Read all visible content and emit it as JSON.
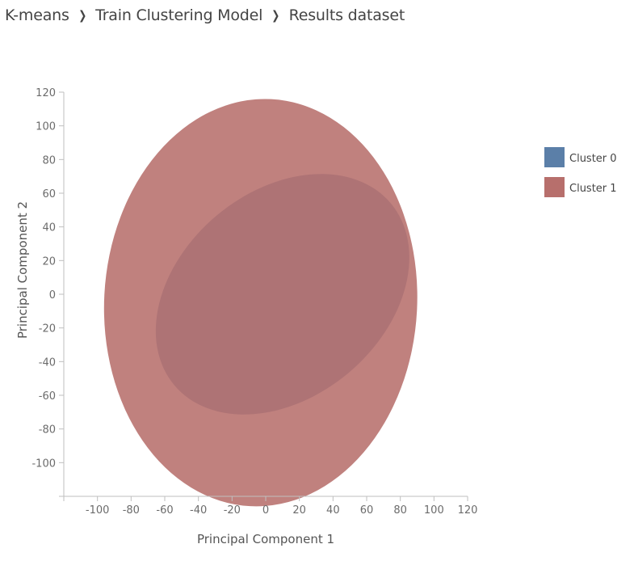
{
  "breadcrumb": {
    "items": [
      "K-means",
      "Train Clustering Model",
      "Results dataset"
    ]
  },
  "chart_data": {
    "type": "scatter",
    "xlabel": "Principal Component 1",
    "ylabel": "Principal Component 2",
    "xlim": [
      -120,
      120
    ],
    "ylim": [
      -120,
      120
    ],
    "xticks": [
      -100,
      -80,
      -60,
      -40,
      -20,
      0,
      20,
      40,
      60,
      80,
      100,
      120
    ],
    "yticks": [
      -100,
      -80,
      -60,
      -40,
      -20,
      0,
      20,
      40,
      60,
      80,
      100,
      120
    ],
    "grid": false,
    "legend_position": "right",
    "series": [
      {
        "name": "Cluster 0",
        "color": "#5b7fa8",
        "shape": "ellipse",
        "center": [
          10,
          0
        ],
        "semi_axes": [
          84,
          61
        ],
        "rotation_deg": -40
      },
      {
        "name": "Cluster 1",
        "color": "#b76f6c",
        "shape": "ellipse",
        "center": [
          -3,
          -5
        ],
        "semi_axes": [
          93,
          121
        ],
        "rotation_deg": 3
      }
    ]
  }
}
